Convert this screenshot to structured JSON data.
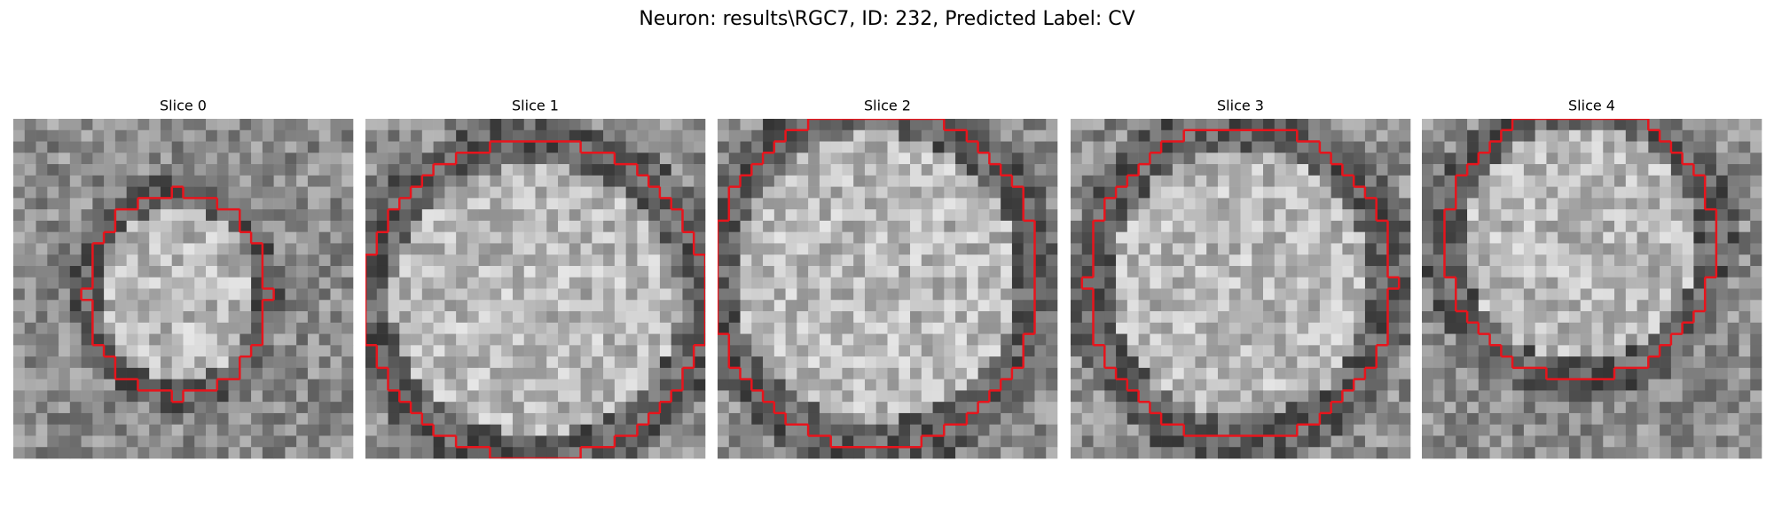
{
  "header": {
    "title": "Neuron: results\\RGC7, ID: 232, Predicted Label: CV"
  },
  "panels": [
    {
      "title": "Slice 0"
    },
    {
      "title": "Slice 1"
    },
    {
      "title": "Slice 2"
    },
    {
      "title": "Slice 3"
    },
    {
      "title": "Slice 4"
    }
  ]
}
